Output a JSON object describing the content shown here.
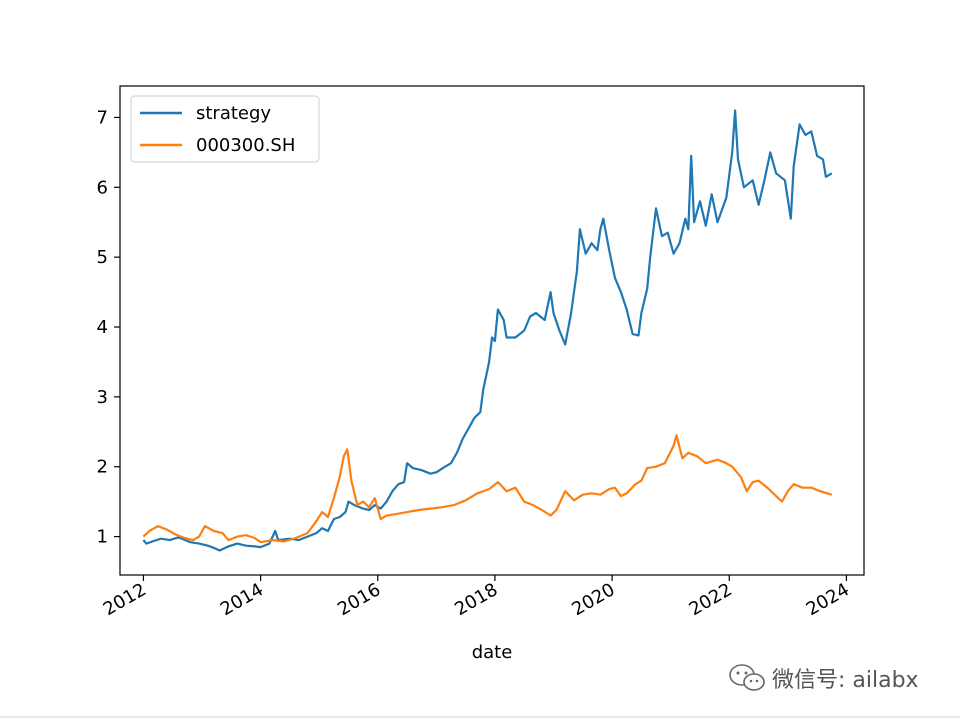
{
  "chart_data": {
    "type": "line",
    "title": "",
    "xlabel": "date",
    "ylabel": "",
    "xlim": [
      2011.6,
      2024.3
    ],
    "ylim": [
      0.45,
      7.45
    ],
    "xticks": [
      2012,
      2014,
      2016,
      2018,
      2020,
      2022,
      2024
    ],
    "xtick_labels": [
      "2012",
      "2014",
      "2016",
      "2018",
      "2020",
      "2022",
      "2024"
    ],
    "yticks": [
      1,
      2,
      3,
      4,
      5,
      6,
      7
    ],
    "ytick_labels": [
      "1",
      "2",
      "3",
      "4",
      "5",
      "6",
      "7"
    ],
    "grid": false,
    "legend_position": "top-left",
    "series": [
      {
        "name": "strategy",
        "color": "#1f77b4",
        "points": [
          [
            2012.0,
            0.95
          ],
          [
            2012.05,
            0.9
          ],
          [
            2012.15,
            0.93
          ],
          [
            2012.3,
            0.97
          ],
          [
            2012.45,
            0.95
          ],
          [
            2012.6,
            0.99
          ],
          [
            2012.8,
            0.92
          ],
          [
            2012.95,
            0.9
          ],
          [
            2013.1,
            0.87
          ],
          [
            2013.2,
            0.84
          ],
          [
            2013.3,
            0.8
          ],
          [
            2013.45,
            0.86
          ],
          [
            2013.6,
            0.9
          ],
          [
            2013.75,
            0.87
          ],
          [
            2013.9,
            0.86
          ],
          [
            2014.0,
            0.85
          ],
          [
            2014.15,
            0.9
          ],
          [
            2014.25,
            1.08
          ],
          [
            2014.3,
            0.95
          ],
          [
            2014.5,
            0.97
          ],
          [
            2014.65,
            0.95
          ],
          [
            2014.8,
            1.0
          ],
          [
            2014.95,
            1.05
          ],
          [
            2015.05,
            1.12
          ],
          [
            2015.15,
            1.08
          ],
          [
            2015.25,
            1.25
          ],
          [
            2015.35,
            1.28
          ],
          [
            2015.45,
            1.35
          ],
          [
            2015.5,
            1.5
          ],
          [
            2015.6,
            1.45
          ],
          [
            2015.75,
            1.4
          ],
          [
            2015.85,
            1.38
          ],
          [
            2015.95,
            1.45
          ],
          [
            2016.05,
            1.4
          ],
          [
            2016.15,
            1.5
          ],
          [
            2016.25,
            1.65
          ],
          [
            2016.35,
            1.75
          ],
          [
            2016.45,
            1.78
          ],
          [
            2016.5,
            2.05
          ],
          [
            2016.6,
            1.98
          ],
          [
            2016.75,
            1.95
          ],
          [
            2016.9,
            1.9
          ],
          [
            2017.0,
            1.92
          ],
          [
            2017.15,
            2.0
          ],
          [
            2017.25,
            2.05
          ],
          [
            2017.35,
            2.2
          ],
          [
            2017.45,
            2.4
          ],
          [
            2017.55,
            2.55
          ],
          [
            2017.65,
            2.7
          ],
          [
            2017.75,
            2.78
          ],
          [
            2017.8,
            3.1
          ],
          [
            2017.9,
            3.5
          ],
          [
            2017.95,
            3.85
          ],
          [
            2018.0,
            3.8
          ],
          [
            2018.05,
            4.25
          ],
          [
            2018.15,
            4.1
          ],
          [
            2018.2,
            3.85
          ],
          [
            2018.35,
            3.85
          ],
          [
            2018.5,
            3.95
          ],
          [
            2018.6,
            4.15
          ],
          [
            2018.7,
            4.2
          ],
          [
            2018.85,
            4.1
          ],
          [
            2018.95,
            4.5
          ],
          [
            2019.0,
            4.2
          ],
          [
            2019.1,
            3.95
          ],
          [
            2019.2,
            3.75
          ],
          [
            2019.3,
            4.2
          ],
          [
            2019.4,
            4.8
          ],
          [
            2019.45,
            5.4
          ],
          [
            2019.55,
            5.05
          ],
          [
            2019.65,
            5.2
          ],
          [
            2019.75,
            5.1
          ],
          [
            2019.8,
            5.4
          ],
          [
            2019.85,
            5.55
          ],
          [
            2019.95,
            5.1
          ],
          [
            2020.05,
            4.7
          ],
          [
            2020.15,
            4.5
          ],
          [
            2020.25,
            4.25
          ],
          [
            2020.35,
            3.9
          ],
          [
            2020.45,
            3.88
          ],
          [
            2020.5,
            4.2
          ],
          [
            2020.6,
            4.55
          ],
          [
            2020.65,
            5.0
          ],
          [
            2020.75,
            5.7
          ],
          [
            2020.85,
            5.3
          ],
          [
            2020.95,
            5.35
          ],
          [
            2021.05,
            5.05
          ],
          [
            2021.15,
            5.2
          ],
          [
            2021.25,
            5.55
          ],
          [
            2021.3,
            5.4
          ],
          [
            2021.35,
            6.45
          ],
          [
            2021.4,
            5.5
          ],
          [
            2021.5,
            5.8
          ],
          [
            2021.6,
            5.45
          ],
          [
            2021.7,
            5.9
          ],
          [
            2021.8,
            5.5
          ],
          [
            2021.95,
            5.85
          ],
          [
            2022.05,
            6.5
          ],
          [
            2022.1,
            7.1
          ],
          [
            2022.15,
            6.4
          ],
          [
            2022.25,
            6.0
          ],
          [
            2022.4,
            6.1
          ],
          [
            2022.5,
            5.75
          ],
          [
            2022.6,
            6.1
          ],
          [
            2022.7,
            6.5
          ],
          [
            2022.8,
            6.2
          ],
          [
            2022.95,
            6.1
          ],
          [
            2023.05,
            5.55
          ],
          [
            2023.1,
            6.3
          ],
          [
            2023.2,
            6.9
          ],
          [
            2023.3,
            6.75
          ],
          [
            2023.4,
            6.8
          ],
          [
            2023.5,
            6.45
          ],
          [
            2023.6,
            6.4
          ],
          [
            2023.65,
            6.15
          ],
          [
            2023.75,
            6.2
          ]
        ]
      },
      {
        "name": "000300.SH",
        "color": "#ff7f0e",
        "points": [
          [
            2012.0,
            1.0
          ],
          [
            2012.1,
            1.08
          ],
          [
            2012.25,
            1.15
          ],
          [
            2012.4,
            1.1
          ],
          [
            2012.55,
            1.03
          ],
          [
            2012.7,
            0.98
          ],
          [
            2012.85,
            0.95
          ],
          [
            2012.95,
            1.0
          ],
          [
            2013.05,
            1.15
          ],
          [
            2013.2,
            1.08
          ],
          [
            2013.35,
            1.05
          ],
          [
            2013.45,
            0.95
          ],
          [
            2013.6,
            1.0
          ],
          [
            2013.75,
            1.02
          ],
          [
            2013.9,
            0.98
          ],
          [
            2014.0,
            0.92
          ],
          [
            2014.2,
            0.95
          ],
          [
            2014.4,
            0.93
          ],
          [
            2014.6,
            0.98
          ],
          [
            2014.8,
            1.05
          ],
          [
            2014.95,
            1.22
          ],
          [
            2015.05,
            1.35
          ],
          [
            2015.15,
            1.28
          ],
          [
            2015.25,
            1.55
          ],
          [
            2015.35,
            1.85
          ],
          [
            2015.42,
            2.15
          ],
          [
            2015.48,
            2.25
          ],
          [
            2015.55,
            1.8
          ],
          [
            2015.65,
            1.45
          ],
          [
            2015.75,
            1.5
          ],
          [
            2015.85,
            1.42
          ],
          [
            2015.95,
            1.55
          ],
          [
            2016.05,
            1.25
          ],
          [
            2016.15,
            1.3
          ],
          [
            2016.3,
            1.32
          ],
          [
            2016.5,
            1.35
          ],
          [
            2016.7,
            1.38
          ],
          [
            2016.9,
            1.4
          ],
          [
            2017.1,
            1.42
          ],
          [
            2017.3,
            1.45
          ],
          [
            2017.5,
            1.52
          ],
          [
            2017.7,
            1.62
          ],
          [
            2017.9,
            1.68
          ],
          [
            2018.05,
            1.78
          ],
          [
            2018.2,
            1.65
          ],
          [
            2018.35,
            1.7
          ],
          [
            2018.5,
            1.5
          ],
          [
            2018.65,
            1.45
          ],
          [
            2018.8,
            1.38
          ],
          [
            2018.95,
            1.3
          ],
          [
            2019.05,
            1.38
          ],
          [
            2019.2,
            1.65
          ],
          [
            2019.35,
            1.52
          ],
          [
            2019.5,
            1.6
          ],
          [
            2019.65,
            1.62
          ],
          [
            2019.8,
            1.6
          ],
          [
            2019.95,
            1.68
          ],
          [
            2020.05,
            1.7
          ],
          [
            2020.15,
            1.58
          ],
          [
            2020.25,
            1.62
          ],
          [
            2020.4,
            1.75
          ],
          [
            2020.5,
            1.8
          ],
          [
            2020.6,
            1.98
          ],
          [
            2020.75,
            2.0
          ],
          [
            2020.9,
            2.05
          ],
          [
            2021.05,
            2.3
          ],
          [
            2021.1,
            2.45
          ],
          [
            2021.2,
            2.12
          ],
          [
            2021.3,
            2.2
          ],
          [
            2021.45,
            2.15
          ],
          [
            2021.6,
            2.05
          ],
          [
            2021.8,
            2.1
          ],
          [
            2021.95,
            2.05
          ],
          [
            2022.05,
            2.0
          ],
          [
            2022.2,
            1.85
          ],
          [
            2022.3,
            1.65
          ],
          [
            2022.4,
            1.78
          ],
          [
            2022.5,
            1.8
          ],
          [
            2022.65,
            1.7
          ],
          [
            2022.8,
            1.58
          ],
          [
            2022.9,
            1.5
          ],
          [
            2023.0,
            1.65
          ],
          [
            2023.1,
            1.75
          ],
          [
            2023.25,
            1.7
          ],
          [
            2023.4,
            1.7
          ],
          [
            2023.55,
            1.65
          ],
          [
            2023.75,
            1.6
          ]
        ]
      }
    ]
  },
  "watermark": {
    "icon": "wechat-icon",
    "text": "微信号: ailabx"
  }
}
